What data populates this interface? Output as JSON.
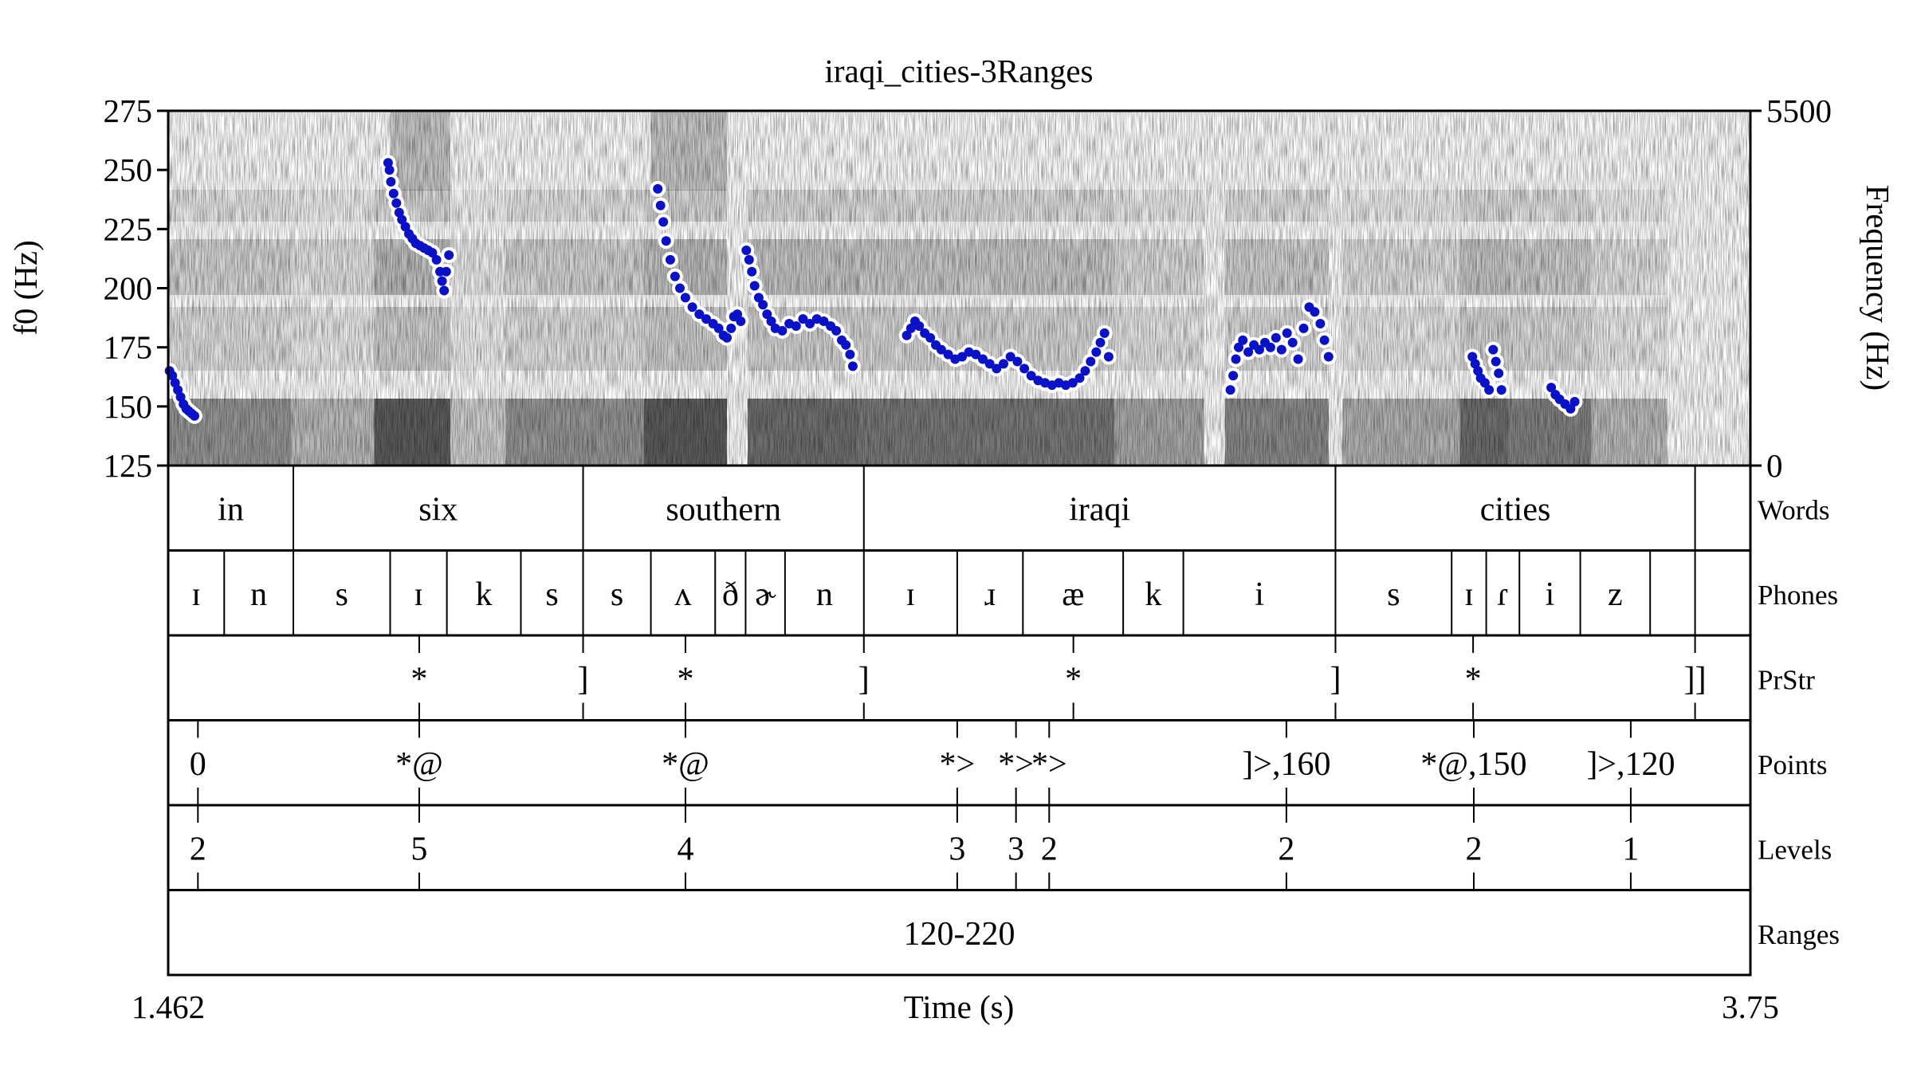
{
  "chart_data": {
    "type": "scatter",
    "title": "iraqi_cities-3Ranges",
    "xlabel": "Time (s)",
    "ylabel_left": "f0 (Hz)",
    "ylabel_right": "Frequency (Hz)",
    "xlim": [
      1.462,
      3.75
    ],
    "x_tick_labels": [
      "1.462",
      "Time (s)",
      "3.75"
    ],
    "ylim_left": [
      125,
      275
    ],
    "yticks_left": [
      125,
      150,
      175,
      200,
      225,
      250,
      275
    ],
    "ylim_right": [
      0,
      5500
    ],
    "yticks_right": [
      0,
      5500
    ],
    "background": "spectrogram (grayscale)",
    "colors": {
      "f0_points": "#0a12c8",
      "f0_halo": "#ffffff",
      "spectrogram_dark": "#111111",
      "axis": "#000000"
    },
    "f0_points": [
      {
        "x": 1.464,
        "y": 165
      },
      {
        "x": 1.468,
        "y": 163
      },
      {
        "x": 1.472,
        "y": 160
      },
      {
        "x": 1.476,
        "y": 157
      },
      {
        "x": 1.48,
        "y": 154
      },
      {
        "x": 1.484,
        "y": 151
      },
      {
        "x": 1.488,
        "y": 149
      },
      {
        "x": 1.492,
        "y": 148
      },
      {
        "x": 1.496,
        "y": 147
      },
      {
        "x": 1.5,
        "y": 146
      },
      {
        "x": 1.78,
        "y": 253
      },
      {
        "x": 1.782,
        "y": 250
      },
      {
        "x": 1.784,
        "y": 245
      },
      {
        "x": 1.788,
        "y": 240
      },
      {
        "x": 1.792,
        "y": 236
      },
      {
        "x": 1.796,
        "y": 232
      },
      {
        "x": 1.8,
        "y": 229
      },
      {
        "x": 1.805,
        "y": 226
      },
      {
        "x": 1.81,
        "y": 223
      },
      {
        "x": 1.815,
        "y": 221
      },
      {
        "x": 1.82,
        "y": 219
      },
      {
        "x": 1.826,
        "y": 218
      },
      {
        "x": 1.832,
        "y": 217
      },
      {
        "x": 1.838,
        "y": 216
      },
      {
        "x": 1.844,
        "y": 215
      },
      {
        "x": 1.85,
        "y": 212
      },
      {
        "x": 1.855,
        "y": 207
      },
      {
        "x": 1.858,
        "y": 203
      },
      {
        "x": 1.861,
        "y": 199
      },
      {
        "x": 1.864,
        "y": 207
      },
      {
        "x": 1.868,
        "y": 214
      },
      {
        "x": 2.17,
        "y": 242
      },
      {
        "x": 2.174,
        "y": 235
      },
      {
        "x": 2.178,
        "y": 228
      },
      {
        "x": 2.182,
        "y": 220
      },
      {
        "x": 2.188,
        "y": 212
      },
      {
        "x": 2.195,
        "y": 205
      },
      {
        "x": 2.202,
        "y": 200
      },
      {
        "x": 2.21,
        "y": 196
      },
      {
        "x": 2.22,
        "y": 192
      },
      {
        "x": 2.23,
        "y": 189
      },
      {
        "x": 2.24,
        "y": 187
      },
      {
        "x": 2.25,
        "y": 185
      },
      {
        "x": 2.258,
        "y": 183
      },
      {
        "x": 2.265,
        "y": 180
      },
      {
        "x": 2.27,
        "y": 179
      },
      {
        "x": 2.276,
        "y": 183
      },
      {
        "x": 2.28,
        "y": 188
      },
      {
        "x": 2.285,
        "y": 189
      },
      {
        "x": 2.29,
        "y": 186
      },
      {
        "x": 2.298,
        "y": 216
      },
      {
        "x": 2.302,
        "y": 212
      },
      {
        "x": 2.306,
        "y": 207
      },
      {
        "x": 2.31,
        "y": 201
      },
      {
        "x": 2.316,
        "y": 196
      },
      {
        "x": 2.322,
        "y": 193
      },
      {
        "x": 2.328,
        "y": 189
      },
      {
        "x": 2.334,
        "y": 186
      },
      {
        "x": 2.34,
        "y": 183
      },
      {
        "x": 2.35,
        "y": 182
      },
      {
        "x": 2.36,
        "y": 185
      },
      {
        "x": 2.37,
        "y": 184
      },
      {
        "x": 2.38,
        "y": 187
      },
      {
        "x": 2.39,
        "y": 185
      },
      {
        "x": 2.4,
        "y": 187
      },
      {
        "x": 2.41,
        "y": 186
      },
      {
        "x": 2.42,
        "y": 184
      },
      {
        "x": 2.428,
        "y": 182
      },
      {
        "x": 2.436,
        "y": 178
      },
      {
        "x": 2.442,
        "y": 176
      },
      {
        "x": 2.448,
        "y": 172
      },
      {
        "x": 2.452,
        "y": 167
      },
      {
        "x": 2.53,
        "y": 180
      },
      {
        "x": 2.536,
        "y": 183
      },
      {
        "x": 2.542,
        "y": 186
      },
      {
        "x": 2.548,
        "y": 184
      },
      {
        "x": 2.556,
        "y": 181
      },
      {
        "x": 2.564,
        "y": 179
      },
      {
        "x": 2.572,
        "y": 176
      },
      {
        "x": 2.58,
        "y": 174
      },
      {
        "x": 2.59,
        "y": 172
      },
      {
        "x": 2.6,
        "y": 170
      },
      {
        "x": 2.61,
        "y": 171
      },
      {
        "x": 2.62,
        "y": 173
      },
      {
        "x": 2.63,
        "y": 172
      },
      {
        "x": 2.64,
        "y": 170
      },
      {
        "x": 2.65,
        "y": 168
      },
      {
        "x": 2.66,
        "y": 166
      },
      {
        "x": 2.67,
        "y": 168
      },
      {
        "x": 2.68,
        "y": 171
      },
      {
        "x": 2.69,
        "y": 169
      },
      {
        "x": 2.7,
        "y": 166
      },
      {
        "x": 2.71,
        "y": 163
      },
      {
        "x": 2.72,
        "y": 161
      },
      {
        "x": 2.73,
        "y": 160
      },
      {
        "x": 2.74,
        "y": 159
      },
      {
        "x": 2.75,
        "y": 160
      },
      {
        "x": 2.76,
        "y": 159
      },
      {
        "x": 2.77,
        "y": 160
      },
      {
        "x": 2.78,
        "y": 162
      },
      {
        "x": 2.788,
        "y": 165
      },
      {
        "x": 2.796,
        "y": 169
      },
      {
        "x": 2.804,
        "y": 173
      },
      {
        "x": 2.81,
        "y": 177
      },
      {
        "x": 2.816,
        "y": 181
      },
      {
        "x": 2.822,
        "y": 171
      },
      {
        "x": 2.998,
        "y": 157
      },
      {
        "x": 3.002,
        "y": 163
      },
      {
        "x": 3.006,
        "y": 170
      },
      {
        "x": 3.01,
        "y": 175
      },
      {
        "x": 3.016,
        "y": 178
      },
      {
        "x": 3.024,
        "y": 173
      },
      {
        "x": 3.032,
        "y": 176
      },
      {
        "x": 3.04,
        "y": 174
      },
      {
        "x": 3.048,
        "y": 177
      },
      {
        "x": 3.056,
        "y": 175
      },
      {
        "x": 3.064,
        "y": 179
      },
      {
        "x": 3.072,
        "y": 174
      },
      {
        "x": 3.08,
        "y": 181
      },
      {
        "x": 3.088,
        "y": 177
      },
      {
        "x": 3.096,
        "y": 170
      },
      {
        "x": 3.104,
        "y": 183
      },
      {
        "x": 3.112,
        "y": 192
      },
      {
        "x": 3.12,
        "y": 190
      },
      {
        "x": 3.128,
        "y": 185
      },
      {
        "x": 3.134,
        "y": 178
      },
      {
        "x": 3.14,
        "y": 171
      },
      {
        "x": 3.348,
        "y": 171
      },
      {
        "x": 3.352,
        "y": 168
      },
      {
        "x": 3.356,
        "y": 165
      },
      {
        "x": 3.36,
        "y": 162
      },
      {
        "x": 3.366,
        "y": 160
      },
      {
        "x": 3.372,
        "y": 157
      },
      {
        "x": 3.378,
        "y": 174
      },
      {
        "x": 3.382,
        "y": 169
      },
      {
        "x": 3.386,
        "y": 164
      },
      {
        "x": 3.39,
        "y": 157
      },
      {
        "x": 3.462,
        "y": 158
      },
      {
        "x": 3.468,
        "y": 155
      },
      {
        "x": 3.474,
        "y": 153
      },
      {
        "x": 3.482,
        "y": 151
      },
      {
        "x": 3.49,
        "y": 149
      },
      {
        "x": 3.496,
        "y": 152
      }
    ]
  },
  "tiers": [
    {
      "name": "Words",
      "type": "interval",
      "boundaries": [
        1.462,
        1.643,
        2.062,
        2.468,
        3.15,
        3.67,
        3.75
      ],
      "labels": [
        {
          "start": 1.462,
          "end": 1.643,
          "text": "in"
        },
        {
          "start": 1.643,
          "end": 2.062,
          "text": "six"
        },
        {
          "start": 2.062,
          "end": 2.468,
          "text": "southern"
        },
        {
          "start": 2.468,
          "end": 3.15,
          "text": "iraqi"
        },
        {
          "start": 3.15,
          "end": 3.67,
          "text": "cities"
        },
        {
          "start": 3.67,
          "end": 3.75,
          "text": ""
        }
      ]
    },
    {
      "name": "Phones",
      "type": "interval",
      "boundaries": [
        1.462,
        1.543,
        1.643,
        1.783,
        1.865,
        1.972,
        2.062,
        2.16,
        2.253,
        2.297,
        2.354,
        2.468,
        2.603,
        2.698,
        2.843,
        2.93,
        3.15,
        3.318,
        3.368,
        3.416,
        3.504,
        3.605,
        3.67,
        3.75
      ],
      "labels": [
        {
          "start": 1.462,
          "end": 1.543,
          "text": "ɪ"
        },
        {
          "start": 1.543,
          "end": 1.643,
          "text": "n"
        },
        {
          "start": 1.643,
          "end": 1.783,
          "text": "s"
        },
        {
          "start": 1.783,
          "end": 1.865,
          "text": "ɪ"
        },
        {
          "start": 1.865,
          "end": 1.972,
          "text": "k"
        },
        {
          "start": 1.972,
          "end": 2.062,
          "text": "s"
        },
        {
          "start": 2.062,
          "end": 2.16,
          "text": "s"
        },
        {
          "start": 2.16,
          "end": 2.253,
          "text": "ʌ"
        },
        {
          "start": 2.253,
          "end": 2.297,
          "text": "ð"
        },
        {
          "start": 2.297,
          "end": 2.354,
          "text": "ɚ"
        },
        {
          "start": 2.354,
          "end": 2.468,
          "text": "n"
        },
        {
          "start": 2.468,
          "end": 2.603,
          "text": "ɪ"
        },
        {
          "start": 2.603,
          "end": 2.698,
          "text": "ɹ"
        },
        {
          "start": 2.698,
          "end": 2.843,
          "text": "æ"
        },
        {
          "start": 2.843,
          "end": 2.93,
          "text": "k"
        },
        {
          "start": 2.93,
          "end": 3.15,
          "text": "i"
        },
        {
          "start": 3.15,
          "end": 3.318,
          "text": "s"
        },
        {
          "start": 3.318,
          "end": 3.368,
          "text": "ɪ"
        },
        {
          "start": 3.368,
          "end": 3.416,
          "text": "ɾ"
        },
        {
          "start": 3.416,
          "end": 3.504,
          "text": "i"
        },
        {
          "start": 3.504,
          "end": 3.605,
          "text": "z"
        },
        {
          "start": 3.605,
          "end": 3.67,
          "text": ""
        },
        {
          "start": 3.67,
          "end": 3.75,
          "text": ""
        }
      ]
    },
    {
      "name": "PrStr",
      "type": "point",
      "points": [
        {
          "t": 1.825,
          "text": "*"
        },
        {
          "t": 2.062,
          "text": "]"
        },
        {
          "t": 2.21,
          "text": "*"
        },
        {
          "t": 2.468,
          "text": "]"
        },
        {
          "t": 2.771,
          "text": "*"
        },
        {
          "t": 3.15,
          "text": "]"
        },
        {
          "t": 3.349,
          "text": "*"
        },
        {
          "t": 3.67,
          "text": "]]"
        }
      ]
    },
    {
      "name": "Points",
      "type": "point",
      "points": [
        {
          "t": 1.505,
          "text": "0"
        },
        {
          "t": 1.825,
          "text": "*@"
        },
        {
          "t": 2.21,
          "text": "*@"
        },
        {
          "t": 2.603,
          "text": "*>"
        },
        {
          "t": 2.688,
          "text": "*>"
        },
        {
          "t": 2.736,
          "text": "*>"
        },
        {
          "t": 3.079,
          "text": "]>,160"
        },
        {
          "t": 3.35,
          "text": "*@,150"
        },
        {
          "t": 3.577,
          "text": "]>,120"
        }
      ]
    },
    {
      "name": "Levels",
      "type": "point",
      "points": [
        {
          "t": 1.505,
          "text": "2"
        },
        {
          "t": 1.825,
          "text": "5"
        },
        {
          "t": 2.21,
          "text": "4"
        },
        {
          "t": 2.603,
          "text": "3"
        },
        {
          "t": 2.688,
          "text": "3"
        },
        {
          "t": 2.736,
          "text": "2"
        },
        {
          "t": 3.079,
          "text": "2"
        },
        {
          "t": 3.35,
          "text": "2"
        },
        {
          "t": 3.577,
          "text": "1"
        }
      ]
    },
    {
      "name": "Ranges",
      "type": "interval",
      "boundaries": [
        1.462,
        3.75
      ],
      "labels": [
        {
          "start": 1.462,
          "end": 3.75,
          "text": "120-220"
        }
      ]
    }
  ]
}
